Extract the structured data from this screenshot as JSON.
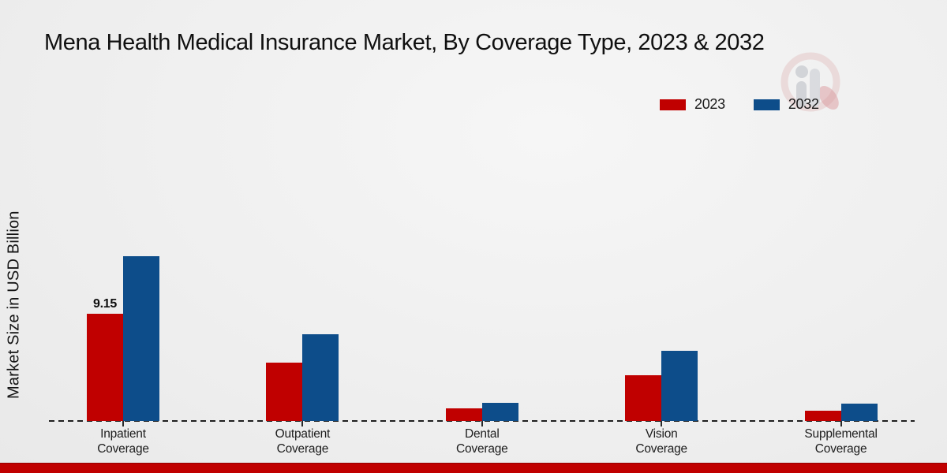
{
  "chart_data": {
    "type": "bar",
    "title": "Mena Health Medical Insurance Market, By Coverage Type, 2023 & 2032",
    "xlabel": "",
    "ylabel": "Market Size in USD Billion",
    "categories": [
      "Inpatient Coverage",
      "Outpatient Coverage",
      "Dental Coverage",
      "Vision Coverage",
      "Supplemental Coverage"
    ],
    "series": [
      {
        "name": "2023",
        "color": "#c00000",
        "values": [
          9.15,
          5.0,
          1.08,
          3.9,
          0.88
        ]
      },
      {
        "name": "2032",
        "color": "#0d4d8a",
        "values": [
          14.05,
          7.4,
          1.55,
          6.0,
          1.45
        ]
      }
    ],
    "annotations": [
      {
        "series": 0,
        "category": 0,
        "text": "9.15"
      }
    ],
    "ylim": [
      0,
      15.5
    ],
    "grid": false,
    "axis_style": "dashed-baseline-only",
    "legend_position": "top-right"
  },
  "colors": {
    "series_2023": "#c00000",
    "series_2032": "#0d4d8a",
    "footer_band": "#c00000",
    "baseline": "#1f1f1f"
  },
  "icons": {
    "watermark_logo": "bar-chart-person-logo"
  }
}
